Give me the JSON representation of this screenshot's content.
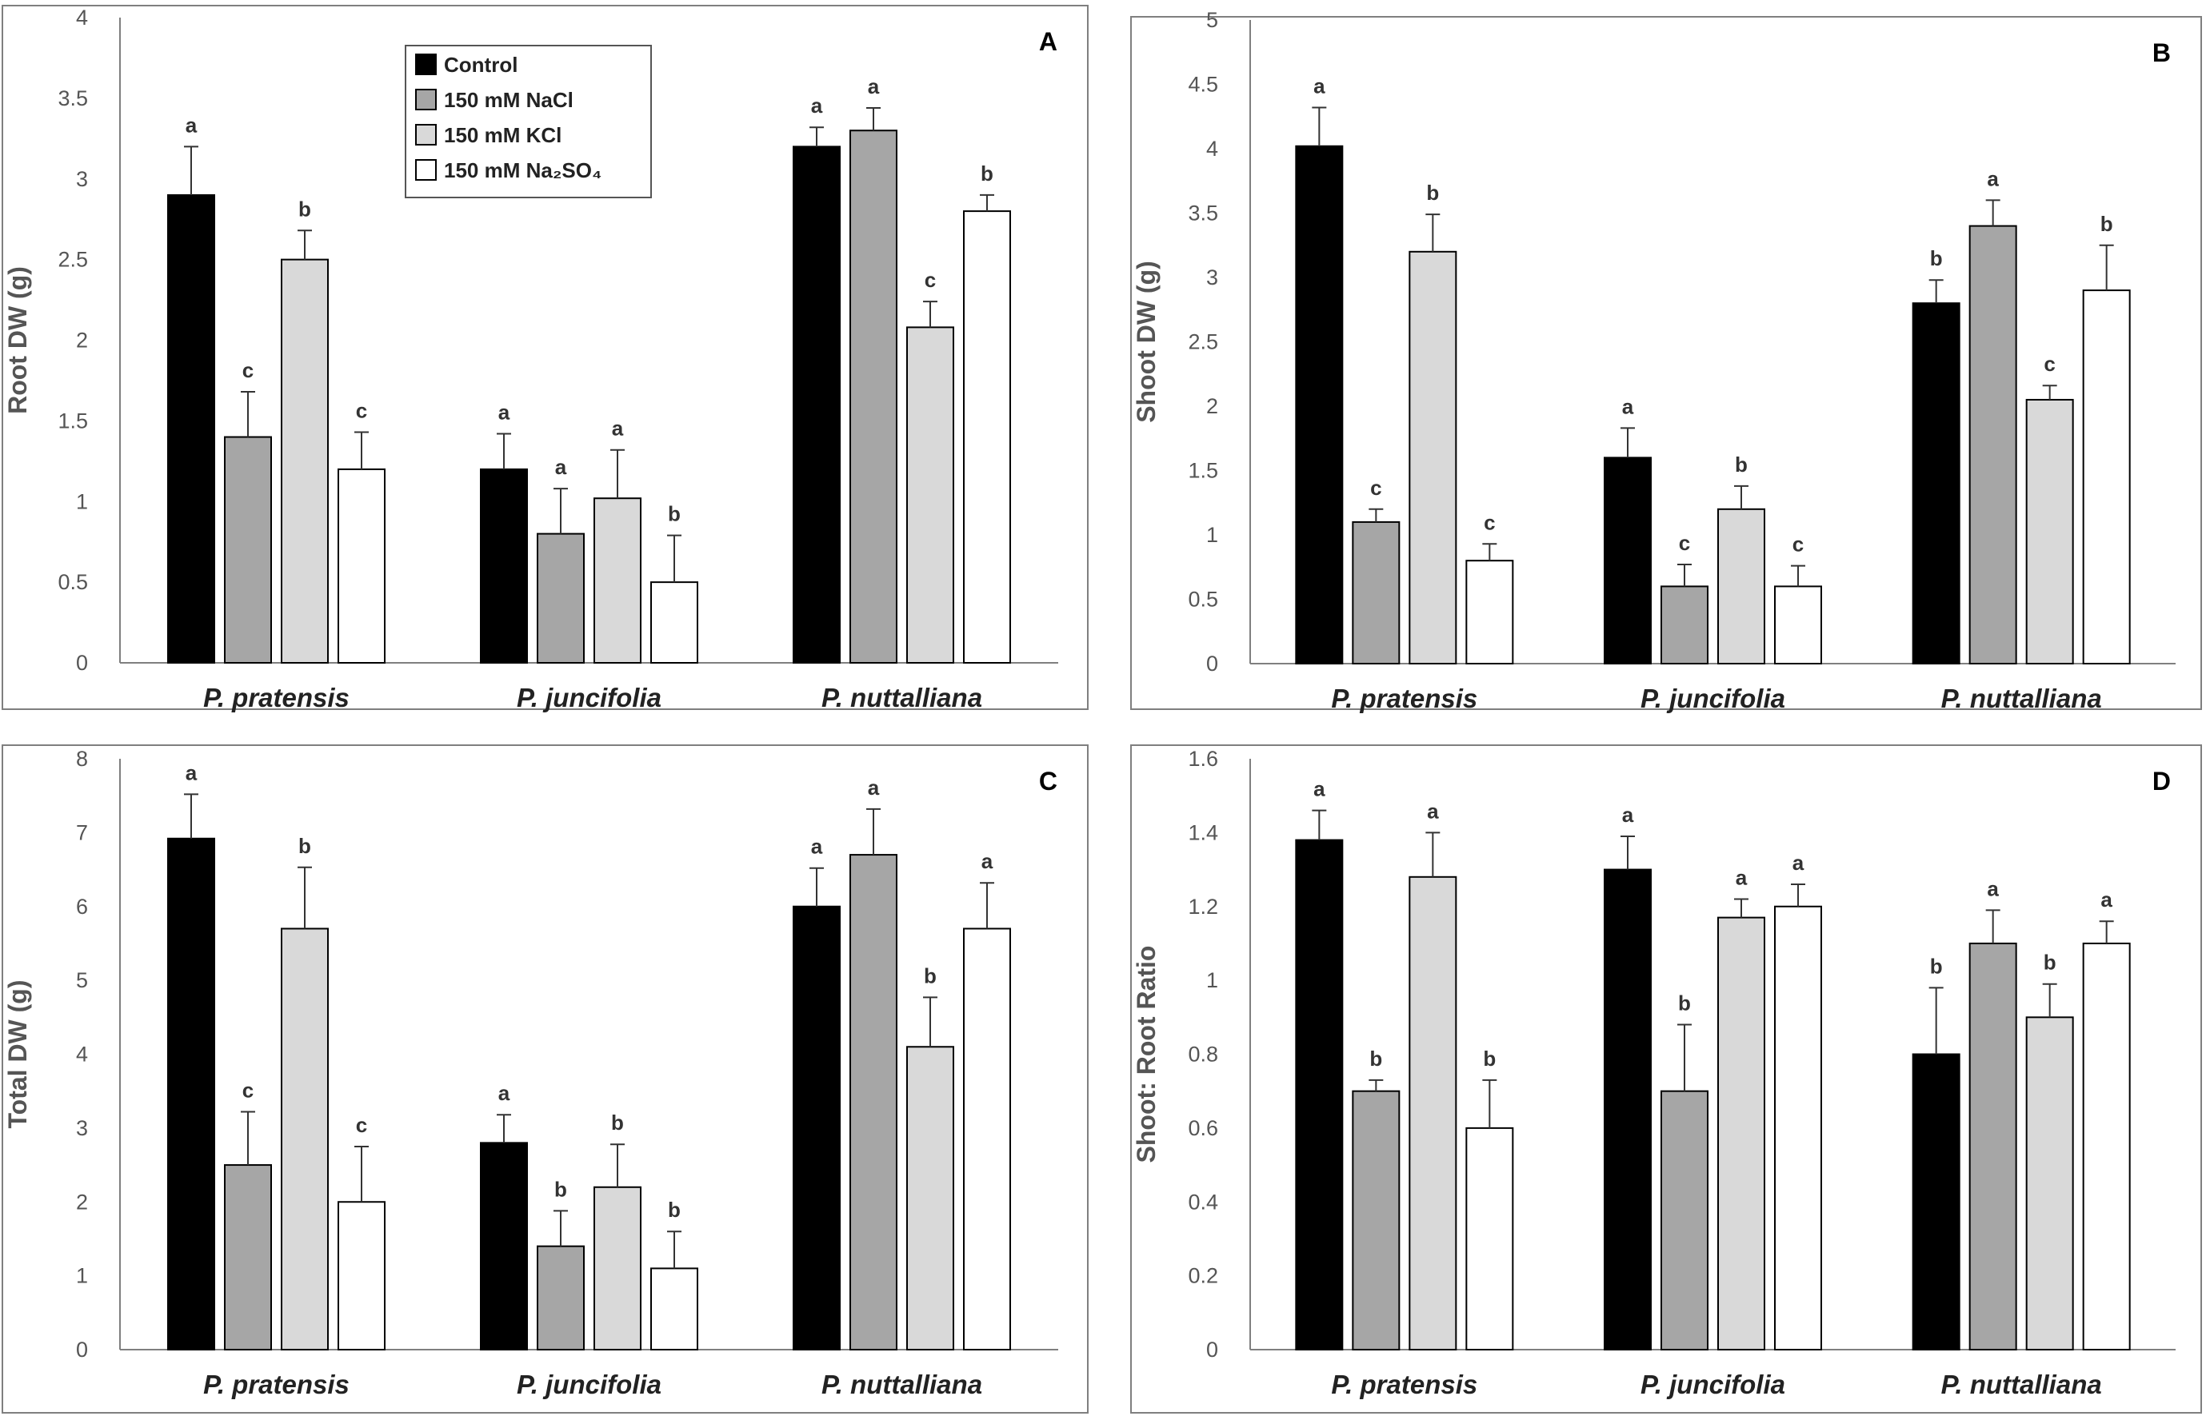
{
  "chart_data": [
    {
      "type": "bar",
      "panel": "A",
      "ylabel": "Root DW (g)",
      "ylim": [
        0,
        4
      ],
      "yticks": [
        "0",
        "0.5",
        "1",
        "1.5",
        "2",
        "2.5",
        "3",
        "3.5",
        "4"
      ],
      "categories": [
        "P. pratensis",
        "P. juncifolia",
        "P. nuttalliana"
      ],
      "series": [
        {
          "name": "Control",
          "color": "#000000",
          "values": [
            2.9,
            1.2,
            3.2
          ],
          "errors": [
            0.3,
            0.22,
            0.12
          ],
          "letters": [
            "a",
            "a",
            "a"
          ]
        },
        {
          "name": "150 mM NaCl",
          "color": "#a6a6a6",
          "values": [
            1.4,
            0.8,
            3.3
          ],
          "errors": [
            0.28,
            0.28,
            0.14
          ],
          "letters": [
            "c",
            "a",
            "a"
          ]
        },
        {
          "name": "150 mM KCl",
          "color": "#d9d9d9",
          "values": [
            2.5,
            1.02,
            2.08
          ],
          "errors": [
            0.18,
            0.3,
            0.16
          ],
          "letters": [
            "b",
            "a",
            "c"
          ]
        },
        {
          "name": "150 mM Na2SO4",
          "color": "#ffffff",
          "values": [
            1.2,
            0.5,
            2.8
          ],
          "errors": [
            0.23,
            0.29,
            0.1
          ],
          "letters": [
            "c",
            "b",
            "b"
          ]
        }
      ]
    },
    {
      "type": "bar",
      "panel": "B",
      "ylabel": "Shoot DW (g)",
      "ylim": [
        0,
        5
      ],
      "yticks": [
        "0",
        "0.5",
        "1",
        "1.5",
        "2",
        "2.5",
        "3",
        "3.5",
        "4",
        "4.5",
        "5"
      ],
      "categories": [
        "P. pratensis",
        "P. juncifolia",
        "P. nuttalliana"
      ],
      "series": [
        {
          "name": "Control",
          "color": "#000000",
          "values": [
            4.02,
            1.6,
            2.8
          ],
          "errors": [
            0.3,
            0.23,
            0.18
          ],
          "letters": [
            "a",
            "a",
            "b"
          ]
        },
        {
          "name": "150 mM NaCl",
          "color": "#a6a6a6",
          "values": [
            1.1,
            0.6,
            3.4
          ],
          "errors": [
            0.1,
            0.17,
            0.2
          ],
          "letters": [
            "c",
            "c",
            "a"
          ]
        },
        {
          "name": "150 mM KCl",
          "color": "#d9d9d9",
          "values": [
            3.2,
            1.2,
            2.05
          ],
          "errors": [
            0.29,
            0.18,
            0.11
          ],
          "letters": [
            "b",
            "b",
            "c"
          ]
        },
        {
          "name": "150 mM Na2SO4",
          "color": "#ffffff",
          "values": [
            0.8,
            0.6,
            2.9
          ],
          "errors": [
            0.13,
            0.16,
            0.35
          ],
          "letters": [
            "c",
            "c",
            "b"
          ]
        }
      ]
    },
    {
      "type": "bar",
      "panel": "C",
      "ylabel": "Total DW (g)",
      "ylim": [
        0,
        8
      ],
      "yticks": [
        "0",
        "1",
        "2",
        "3",
        "4",
        "5",
        "6",
        "7",
        "8"
      ],
      "categories": [
        "P. pratensis",
        "P. juncifolia",
        "P. nuttalliana"
      ],
      "series": [
        {
          "name": "Control",
          "color": "#000000",
          "values": [
            6.92,
            2.8,
            6.0
          ],
          "errors": [
            0.6,
            0.38,
            0.52
          ],
          "letters": [
            "a",
            "a",
            "a"
          ]
        },
        {
          "name": "150 mM NaCl",
          "color": "#a6a6a6",
          "values": [
            2.5,
            1.4,
            6.7
          ],
          "errors": [
            0.72,
            0.48,
            0.62
          ],
          "letters": [
            "c",
            "b",
            "a"
          ]
        },
        {
          "name": "150 mM KCl",
          "color": "#d9d9d9",
          "values": [
            5.7,
            2.2,
            4.1
          ],
          "errors": [
            0.83,
            0.58,
            0.67
          ],
          "letters": [
            "b",
            "b",
            "b"
          ]
        },
        {
          "name": "150 mM Na2SO4",
          "color": "#ffffff",
          "values": [
            2.0,
            1.1,
            5.7
          ],
          "errors": [
            0.75,
            0.5,
            0.62
          ],
          "letters": [
            "c",
            "b",
            "a"
          ]
        }
      ]
    },
    {
      "type": "bar",
      "panel": "D",
      "ylabel": "Shoot: Root Ratio",
      "ylim": [
        0,
        1.6
      ],
      "yticks": [
        "0",
        "0.2",
        "0.4",
        "0.6",
        "0.8",
        "1",
        "1.2",
        "1.4",
        "1.6"
      ],
      "categories": [
        "P. pratensis",
        "P. juncifolia",
        "P. nuttalliana"
      ],
      "series": [
        {
          "name": "Control",
          "color": "#000000",
          "values": [
            1.38,
            1.3,
            0.8
          ],
          "errors": [
            0.08,
            0.09,
            0.18
          ],
          "letters": [
            "a",
            "a",
            "b"
          ]
        },
        {
          "name": "150 mM NaCl",
          "color": "#a6a6a6",
          "values": [
            0.7,
            0.7,
            1.1
          ],
          "errors": [
            0.03,
            0.18,
            0.09
          ],
          "letters": [
            "b",
            "b",
            "a"
          ]
        },
        {
          "name": "150 mM KCl",
          "color": "#d9d9d9",
          "values": [
            1.28,
            1.17,
            0.9
          ],
          "errors": [
            0.12,
            0.05,
            0.09
          ],
          "letters": [
            "a",
            "a",
            "b"
          ]
        },
        {
          "name": "150 mM Na2SO4",
          "color": "#ffffff",
          "values": [
            0.6,
            1.2,
            1.1
          ],
          "errors": [
            0.13,
            0.06,
            0.06
          ],
          "letters": [
            "b",
            "a",
            "a"
          ]
        }
      ]
    }
  ],
  "legend": {
    "items": [
      {
        "label": "Control",
        "color": "#000000"
      },
      {
        "label": "150 mM NaCl",
        "color": "#a6a6a6"
      },
      {
        "label": "150 mM KCl",
        "color": "#d9d9d9"
      },
      {
        "label": "150 mM Na₂SO₄",
        "color": "#ffffff"
      }
    ]
  }
}
